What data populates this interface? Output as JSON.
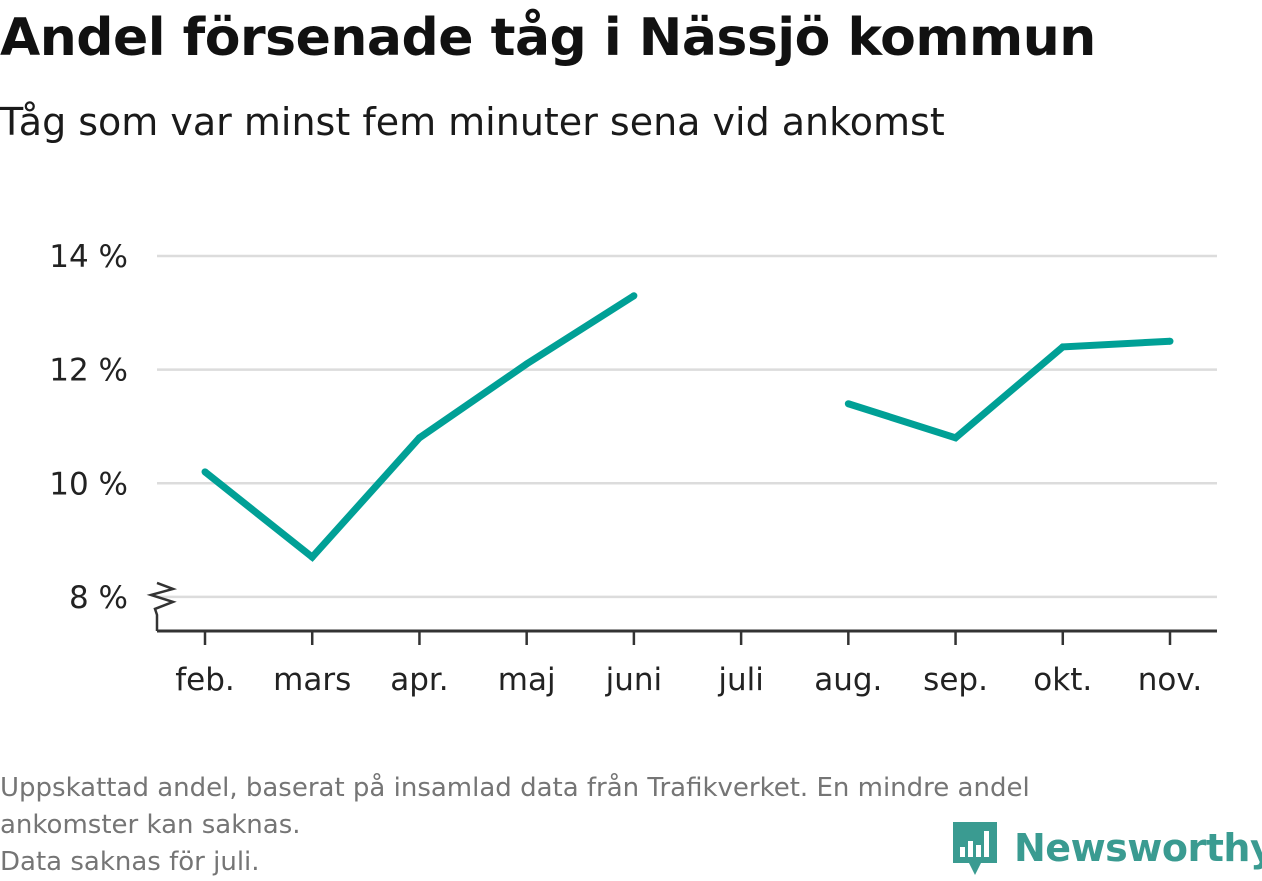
{
  "title": "Andel försenade tåg i Nässjö kommun",
  "subtitle": "Tåg som var minst fem minuter sena vid ankomst",
  "footnote": {
    "line1": "Uppskattad andel, baserat på insamlad data från Trafikverket. En mindre andel",
    "line2": "ankomster kan saknas.",
    "line3": "Data saknas för juli."
  },
  "brand": {
    "name": "Newsworthy",
    "icon": "newsworthy-logo-icon",
    "color": "#3a9b91"
  },
  "chart_data": {
    "type": "line",
    "title": "Andel försenade tåg i Nässjö kommun",
    "subtitle": "Tåg som var minst fem minuter sena vid ankomst",
    "categories": [
      "feb.",
      "mars",
      "apr.",
      "maj",
      "juni",
      "juli",
      "aug.",
      "sep.",
      "okt.",
      "nov."
    ],
    "series": [
      {
        "values": [
          10.2,
          8.7,
          10.8,
          12.1,
          13.3,
          null,
          11.4,
          10.8,
          12.4,
          12.5
        ],
        "color": "#00a096"
      }
    ],
    "y_ticks": [
      8,
      10,
      12,
      14
    ],
    "y_tick_labels": [
      "8 %",
      "10 %",
      "12 %",
      "14 %"
    ],
    "ylim": [
      7.4,
      14
    ],
    "y_axis_break": true,
    "grid": true,
    "grid_color": "#dcdcdc",
    "axis_color": "#333333",
    "xlabel": "",
    "ylabel": ""
  }
}
